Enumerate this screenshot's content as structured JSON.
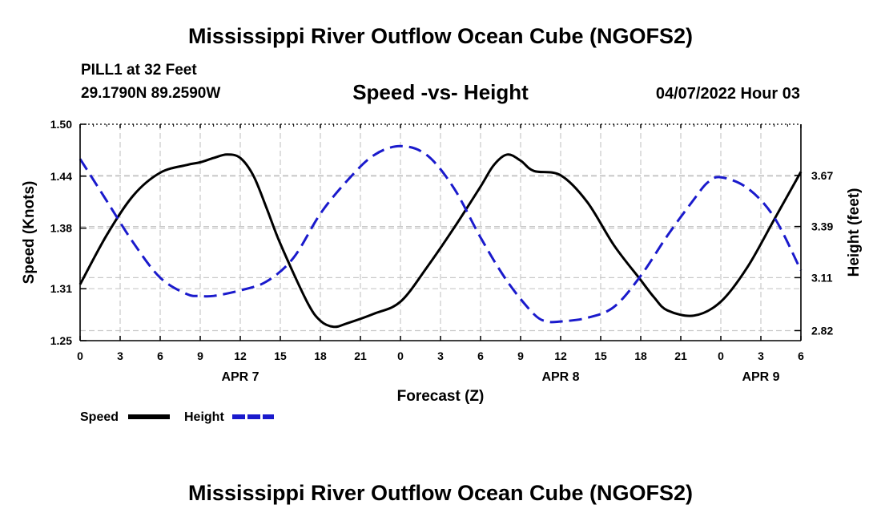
{
  "header": {
    "title": "Mississippi River Outflow Ocean Cube (NGOFS2)",
    "station": "PILL1 at 32 Feet",
    "coordinates": "29.1790N  89.2590W",
    "subtitle": "Speed -vs- Height",
    "datetime": "04/07/2022 Hour 03"
  },
  "footer": {
    "title": "Mississippi River Outflow Ocean Cube (NGOFS2)"
  },
  "chart_data": {
    "type": "line",
    "title": "Speed -vs- Height",
    "xlabel": "Forecast (Z)",
    "ylabel": "Speed (Knots)",
    "y2label": "Height (feet)",
    "grid": true,
    "x_range": [
      0,
      54
    ],
    "x_ticks": [
      0,
      3,
      6,
      9,
      12,
      15,
      18,
      21,
      24,
      27,
      30,
      33,
      36,
      39,
      42,
      45,
      48,
      51,
      54
    ],
    "x_tick_labels": [
      "0",
      "3",
      "6",
      "9",
      "12",
      "15",
      "18",
      "21",
      "0",
      "3",
      "6",
      "9",
      "12",
      "15",
      "18",
      "21",
      "0",
      "3",
      "6"
    ],
    "date_labels": [
      {
        "x": 12,
        "label": "APR 7"
      },
      {
        "x": 36,
        "label": "APR 8"
      },
      {
        "x": 51,
        "label": "APR 9"
      }
    ],
    "y_left": {
      "range": [
        1.25,
        1.5
      ],
      "ticks": [
        1.25,
        1.31,
        1.38,
        1.44,
        1.5
      ],
      "tick_labels": [
        "1.25",
        "1.31",
        "1.38",
        "1.44",
        "1.50"
      ]
    },
    "y_right": {
      "range": [
        2.765,
        3.95
      ],
      "ticks": [
        2.82,
        3.11,
        3.39,
        3.67
      ],
      "tick_labels": [
        "2.82",
        "3.11",
        "3.39",
        "3.67"
      ]
    },
    "legend": [
      {
        "label": "Speed",
        "color": "#000000",
        "style": "solid"
      },
      {
        "label": "Height",
        "color": "#1a1acc",
        "style": "dashed"
      }
    ],
    "series": [
      {
        "name": "Speed",
        "axis": "left",
        "color": "#000000",
        "x": [
          0,
          2,
          4,
          6,
          8,
          9,
          10,
          11,
          12,
          13,
          14,
          15,
          17,
          18,
          19,
          20,
          22,
          24,
          26,
          28,
          30,
          31,
          32,
          33,
          34,
          36,
          38,
          40,
          42,
          43,
          44,
          46,
          48,
          50,
          52,
          54
        ],
        "values": [
          1.315,
          1.372,
          1.418,
          1.444,
          1.453,
          1.456,
          1.461,
          1.465,
          1.461,
          1.44,
          1.402,
          1.362,
          1.295,
          1.273,
          1.266,
          1.27,
          1.281,
          1.295,
          1.335,
          1.38,
          1.428,
          1.453,
          1.465,
          1.458,
          1.446,
          1.441,
          1.41,
          1.36,
          1.32,
          1.3,
          1.285,
          1.279,
          1.295,
          1.335,
          1.39,
          1.445
        ]
      },
      {
        "name": "Height",
        "axis": "right",
        "color": "#1a1acc",
        "x": [
          0,
          2,
          4,
          6,
          8,
          9,
          10,
          12,
          14,
          16,
          18,
          20,
          22,
          24,
          26,
          28,
          30,
          32,
          34,
          35,
          36,
          38,
          40,
          42,
          44,
          46,
          47,
          48,
          50,
          52,
          54
        ],
        "values": [
          3.76,
          3.53,
          3.3,
          3.11,
          3.02,
          3.01,
          3.01,
          3.04,
          3.09,
          3.22,
          3.46,
          3.64,
          3.78,
          3.83,
          3.78,
          3.6,
          3.33,
          3.09,
          2.91,
          2.87,
          2.87,
          2.89,
          2.95,
          3.12,
          3.34,
          3.54,
          3.63,
          3.66,
          3.6,
          3.44,
          3.15
        ]
      }
    ]
  }
}
